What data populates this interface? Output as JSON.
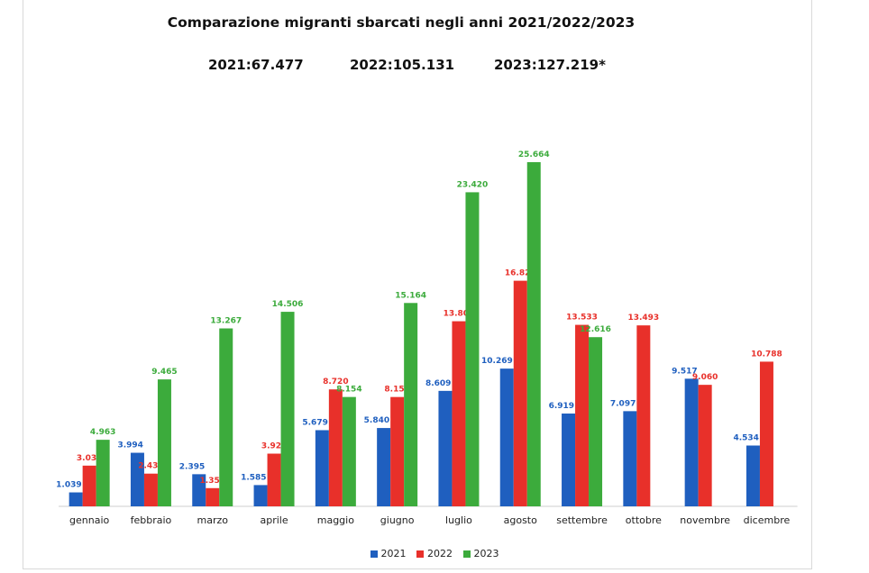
{
  "chart_data": {
    "type": "bar",
    "title": "Comparazione migranti sbarcati negli anni 2021/2022/2023",
    "totals": [
      {
        "label": "2021:67.477"
      },
      {
        "label": "2022:105.131"
      },
      {
        "label": "2023:127.219*"
      }
    ],
    "categories": [
      "gennaio",
      "febbraio",
      "marzo",
      "aprile",
      "maggio",
      "giugno",
      "luglio",
      "agosto",
      "settembre",
      "ottobre",
      "novembre",
      "dicembre"
    ],
    "series": [
      {
        "name": "2021",
        "color": "#1f5fbf",
        "values": [
          1039,
          3994,
          2395,
          1585,
          5679,
          5840,
          8609,
          10269,
          6919,
          7097,
          9517,
          4534
        ],
        "labels": [
          "1.039",
          "3.994",
          "2.395",
          "1.585",
          "5.679",
          "5.840",
          "8.609",
          "10.269",
          "6.919",
          "7.097",
          "9.517",
          "4.534"
        ]
      },
      {
        "name": "2022",
        "color": "#e8302a",
        "values": [
          3035,
          2438,
          1358,
          3929,
          8720,
          8152,
          13802,
          16822,
          13533,
          13493,
          9060,
          10788
        ],
        "labels": [
          "3.035",
          "2.438",
          "1.358",
          "3.929",
          "8.720",
          "8.152",
          "13.802",
          "16.822",
          "13.533",
          "13.493",
          "9.060",
          "10.788"
        ]
      },
      {
        "name": "2023",
        "color": "#3cab3c",
        "values": [
          4963,
          9465,
          13267,
          14506,
          8154,
          15164,
          23420,
          25664,
          12616,
          null,
          null,
          null
        ],
        "labels": [
          "4.963",
          "9.465",
          "13.267",
          "14.506",
          "8.154",
          "15.164",
          "23.420",
          "25.664",
          "12.616",
          "",
          "",
          ""
        ]
      }
    ],
    "ylim": [
      0,
      26000
    ],
    "grid": false,
    "legend": "bottom"
  }
}
